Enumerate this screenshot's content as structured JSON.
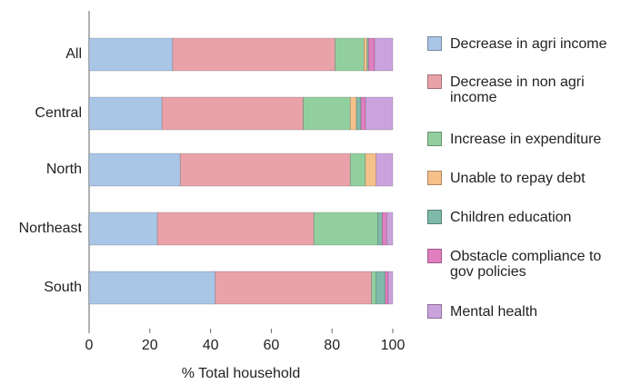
{
  "chart_data": {
    "type": "stacked_barh",
    "categories": [
      "All",
      "Central",
      "North",
      "Northeast",
      "South"
    ],
    "xlabel": "% Total household",
    "xlim": [
      0,
      100
    ],
    "xticks": [
      0,
      20,
      40,
      60,
      80,
      100
    ],
    "series": [
      {
        "name": "Decrease in agri income",
        "color": "#a9c6e6",
        "values": [
          27.5,
          24,
          30,
          22.5,
          41.5
        ]
      },
      {
        "name": "Decrease in non agri income",
        "color": "#e9a2aa",
        "values": [
          53.5,
          46.5,
          56,
          51.5,
          51.5
        ]
      },
      {
        "name": "Increase in expenditure",
        "color": "#92cf9e",
        "values": [
          9.5,
          15.5,
          5,
          21,
          1.5
        ]
      },
      {
        "name": "Unable to repay debt",
        "color": "#f5c08a",
        "values": [
          1,
          2,
          3.5,
          0,
          0
        ]
      },
      {
        "name": "Children education",
        "color": "#7fb9a9",
        "values": [
          0.5,
          1.5,
          0,
          1.5,
          3
        ]
      },
      {
        "name": "Obstacle compliance to gov policies",
        "color": "#e07fc0",
        "values": [
          2,
          1.5,
          0,
          1.5,
          1
        ]
      },
      {
        "name": "Mental health",
        "color": "#caa3dc",
        "values": [
          6,
          9,
          5.5,
          2,
          1.5
        ]
      }
    ]
  }
}
